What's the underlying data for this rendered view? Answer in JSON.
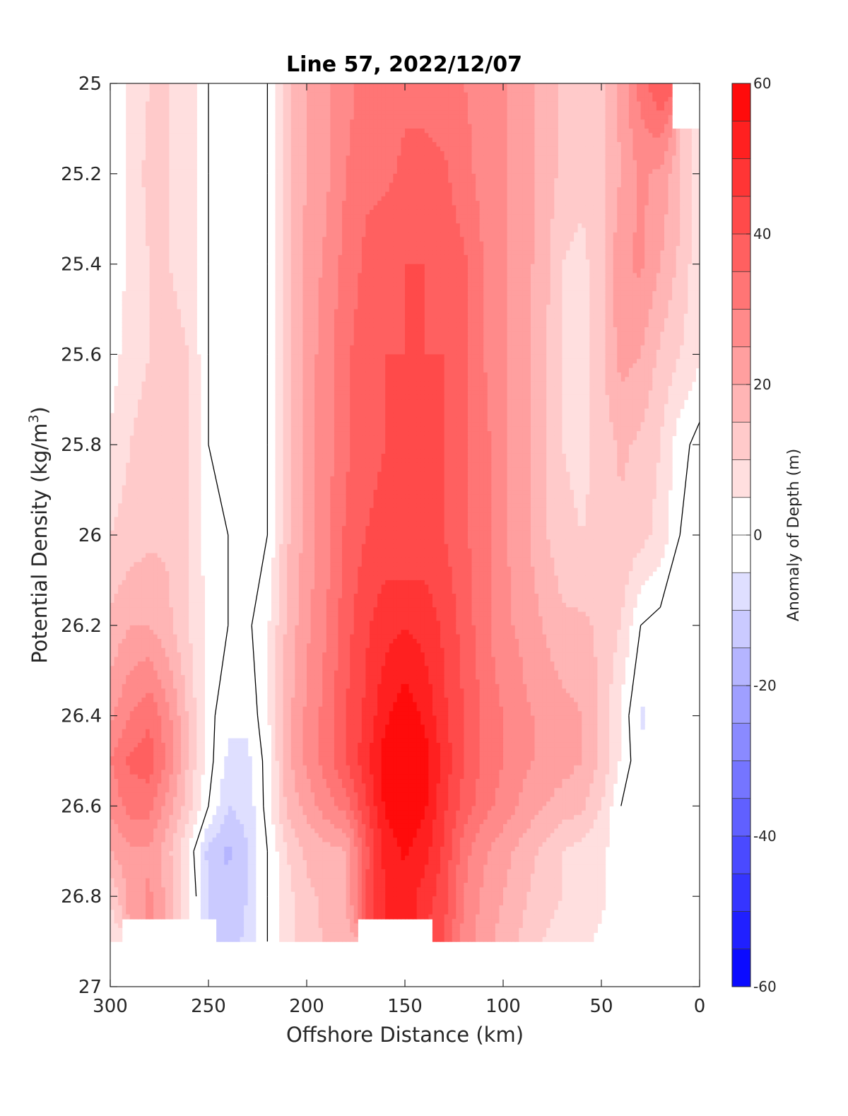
{
  "chart_data": {
    "type": "heatmap",
    "title": "Line 57, 2022/12/07",
    "xlabel": "Offshore Distance (km)",
    "ylabel_main": "Potential Density (kg/m",
    "ylabel_sup": "3",
    "ylabel_close": ")",
    "xlim": [
      300,
      0
    ],
    "x_reversed": true,
    "ylim": [
      25,
      27
    ],
    "y_reversed": true,
    "xticks": [
      300,
      250,
      200,
      150,
      100,
      50,
      0
    ],
    "xtick_labels": [
      "300",
      "250",
      "200",
      "150",
      "100",
      "50",
      "0"
    ],
    "yticks": [
      25,
      25.2,
      25.4,
      25.6,
      25.8,
      26,
      26.2,
      26.4,
      26.6,
      26.8,
      27
    ],
    "ytick_labels": [
      "25",
      "25.2",
      "25.4",
      "25.6",
      "25.8",
      "26",
      "26.2",
      "26.4",
      "26.6",
      "26.8",
      "27"
    ],
    "colorbar": {
      "label": "Anomaly of Depth (m)",
      "range": [
        -60,
        60
      ],
      "step": 5,
      "ticks": [
        -60,
        -40,
        -20,
        0,
        20,
        40,
        60
      ],
      "tick_labels": [
        "-60",
        "-40",
        "-20",
        "0",
        "20",
        "40",
        "60"
      ],
      "colormap": "blue-white-red",
      "neg_color": "#0000ff",
      "pos_color": "#ff0000"
    },
    "contour_lines": "zero anomaly (black)",
    "grid": false,
    "x_nodes": [
      300,
      290,
      280,
      270,
      260,
      250,
      240,
      230,
      220,
      210,
      200,
      190,
      180,
      170,
      160,
      150,
      140,
      130,
      120,
      110,
      100,
      90,
      80,
      70,
      60,
      50,
      40,
      30,
      20,
      10,
      0
    ],
    "y_nodes": [
      25.0,
      25.2,
      25.4,
      25.6,
      25.8,
      26.0,
      26.2,
      26.4,
      26.5,
      26.6,
      26.7,
      26.8,
      26.9
    ],
    "anomaly_rows": [
      [
        2,
        6,
        10,
        10,
        8,
        0,
        -5,
        -4,
        0,
        14,
        20,
        24,
        28,
        32,
        32,
        34,
        34,
        32,
        30,
        28,
        26,
        22,
        18,
        14,
        12,
        14,
        22,
        32,
        40,
        null,
        null
      ],
      [
        2,
        6,
        12,
        10,
        8,
        0,
        -5,
        -4,
        0,
        14,
        20,
        24,
        30,
        34,
        34,
        36,
        36,
        36,
        32,
        28,
        26,
        22,
        18,
        14,
        12,
        14,
        20,
        26,
        24,
        16,
        4
      ],
      [
        1,
        6,
        10,
        10,
        8,
        0,
        -4,
        -4,
        0,
        14,
        22,
        26,
        32,
        36,
        38,
        40,
        40,
        38,
        36,
        30,
        26,
        22,
        18,
        10,
        8,
        14,
        24,
        26,
        20,
        14,
        6
      ],
      [
        2,
        8,
        10,
        12,
        10,
        0,
        -3,
        -4,
        0,
        14,
        22,
        28,
        34,
        38,
        40,
        40,
        40,
        40,
        36,
        30,
        26,
        22,
        16,
        10,
        8,
        14,
        22,
        20,
        14,
        10,
        6
      ],
      [
        6,
        10,
        12,
        12,
        10,
        0,
        -2,
        -3,
        0,
        14,
        22,
        28,
        34,
        38,
        40,
        40,
        40,
        40,
        36,
        32,
        26,
        22,
        16,
        10,
        8,
        12,
        16,
        14,
        10,
        2,
        -2
      ],
      [
        10,
        12,
        14,
        14,
        10,
        2,
        0,
        -2,
        0,
        14,
        22,
        28,
        36,
        40,
        42,
        40,
        42,
        40,
        36,
        32,
        26,
        22,
        16,
        12,
        10,
        12,
        14,
        12,
        8,
        0,
        -1
      ],
      [
        16,
        20,
        20,
        16,
        10,
        4,
        0,
        -1,
        4,
        16,
        24,
        30,
        38,
        44,
        48,
        50,
        48,
        44,
        38,
        32,
        26,
        24,
        20,
        16,
        16,
        14,
        10,
        0,
        -2,
        -1,
        -1
      ],
      [
        24,
        30,
        34,
        26,
        14,
        2,
        -4,
        -4,
        4,
        18,
        26,
        32,
        40,
        46,
        54,
        58,
        54,
        46,
        40,
        34,
        30,
        26,
        24,
        22,
        20,
        14,
        4,
        -6,
        -2,
        -1,
        -1
      ],
      [
        30,
        36,
        38,
        28,
        14,
        2,
        -6,
        -6,
        2,
        18,
        26,
        32,
        40,
        48,
        58,
        60,
        58,
        48,
        40,
        34,
        30,
        26,
        24,
        22,
        20,
        14,
        4,
        -4,
        -1,
        -1,
        -1
      ],
      [
        26,
        32,
        32,
        22,
        12,
        0,
        -10,
        -8,
        2,
        16,
        22,
        28,
        32,
        44,
        56,
        60,
        56,
        46,
        38,
        32,
        28,
        24,
        20,
        18,
        16,
        10,
        0,
        -1,
        -1,
        -1,
        -1
      ],
      [
        20,
        24,
        24,
        16,
        4,
        -12,
        -16,
        -10,
        0,
        10,
        16,
        18,
        20,
        38,
        52,
        56,
        52,
        44,
        32,
        26,
        22,
        18,
        14,
        10,
        8,
        6,
        2,
        null,
        null,
        null,
        null
      ],
      [
        10,
        22,
        26,
        18,
        6,
        -10,
        -14,
        -10,
        0,
        8,
        14,
        16,
        20,
        40,
        50,
        52,
        48,
        42,
        30,
        24,
        20,
        16,
        12,
        10,
        8,
        6,
        2,
        null,
        null,
        null,
        null
      ],
      [
        6,
        null,
        null,
        null,
        null,
        null,
        -14,
        -8,
        0,
        8,
        12,
        16,
        18,
        null,
        null,
        null,
        null,
        40,
        28,
        22,
        18,
        14,
        10,
        8,
        6,
        4,
        2,
        null,
        null,
        null,
        null
      ]
    ]
  }
}
